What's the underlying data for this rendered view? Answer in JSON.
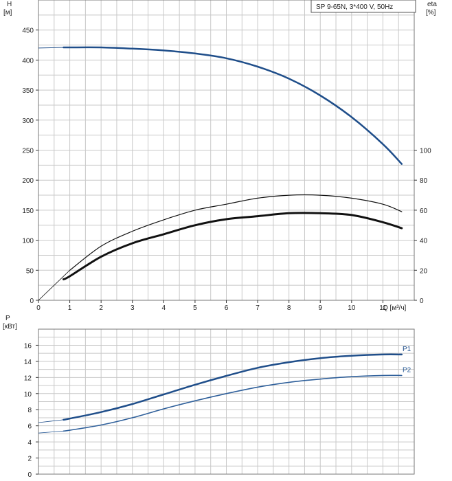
{
  "chart_data": [
    {
      "id": "head_eff",
      "type": "line",
      "title": "SP 9-65N, 3*400 V, 50Hz",
      "y_left_label": [
        "H",
        "[м]"
      ],
      "y_right_label": [
        "eta",
        "[%]"
      ],
      "xlabel": "Q [м³/ч]",
      "xlim": [
        0,
        12
      ],
      "ylim_left": [
        0,
        500
      ],
      "ylim_right": [
        0,
        200
      ],
      "x_ticks": [
        0,
        1,
        2,
        3,
        4,
        5,
        6,
        7,
        8,
        9,
        10,
        11
      ],
      "y_left_ticks": [
        0,
        50,
        100,
        150,
        200,
        250,
        300,
        350,
        400,
        450
      ],
      "y_right_ticks": [
        0,
        20,
        40,
        60,
        80,
        100
      ],
      "colors": {
        "head": "#1f4e8a",
        "eta": "#111111"
      },
      "series": [
        {
          "key": "head",
          "axis": "left",
          "color": "#1f4e8a",
          "x": [
            0,
            0.8,
            1,
            2,
            3,
            4,
            5,
            6,
            7,
            8,
            9,
            10,
            11,
            11.6
          ],
          "y": [
            420,
            421,
            421,
            421,
            419,
            416,
            411,
            403,
            389,
            369,
            341,
            305,
            260,
            227
          ]
        },
        {
          "key": "eta_thin",
          "axis": "right",
          "color": "#111111",
          "x": [
            0,
            1,
            2,
            3,
            4,
            5,
            6,
            7,
            8,
            9,
            10,
            11,
            11.6
          ],
          "y": [
            0,
            20,
            36,
            46,
            53.6,
            60,
            64,
            68,
            70,
            70,
            68,
            64,
            59
          ]
        },
        {
          "key": "eta_thick",
          "axis": "right",
          "color": "#111111",
          "x": [
            0.8,
            1,
            2,
            3,
            4,
            5,
            6,
            7,
            8,
            9,
            10,
            11,
            11.6
          ],
          "y": [
            14,
            16,
            29,
            38,
            44,
            50,
            54,
            56,
            58,
            58,
            56.8,
            52,
            48
          ]
        }
      ]
    },
    {
      "id": "power",
      "type": "line",
      "y_label": [
        "P",
        "[кВт]"
      ],
      "xlim": [
        0,
        12
      ],
      "ylim": [
        0,
        18
      ],
      "y_ticks": [
        0,
        2,
        4,
        6,
        8,
        10,
        12,
        14,
        16
      ],
      "colors": {
        "P1": "#1f4e8a",
        "P2": "#2e5f9a"
      },
      "series": [
        {
          "name": "P1",
          "color": "#1f4e8a",
          "x": [
            0,
            0.8,
            1,
            2,
            3,
            4,
            5,
            6,
            7,
            8,
            9,
            10,
            11,
            11.6
          ],
          "y": [
            6.4,
            6.75,
            6.9,
            7.7,
            8.7,
            9.9,
            11.1,
            12.2,
            13.2,
            13.9,
            14.4,
            14.7,
            14.85,
            14.85
          ]
        },
        {
          "name": "P2",
          "color": "#2e5f9a",
          "x": [
            0,
            0.8,
            1,
            2,
            3,
            4,
            5,
            6,
            7,
            8,
            9,
            10,
            11,
            11.6
          ],
          "y": [
            5.1,
            5.35,
            5.45,
            6.1,
            7.0,
            8.1,
            9.1,
            10.0,
            10.8,
            11.4,
            11.8,
            12.1,
            12.25,
            12.25
          ]
        }
      ]
    }
  ]
}
